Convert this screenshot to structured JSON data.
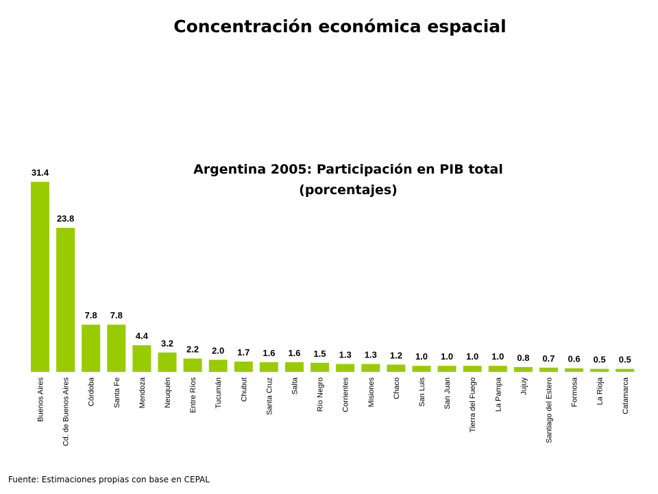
{
  "page_title": "Concentración económica espacial",
  "footer": "Fuente: Estimaciones propias con base en CEPAL",
  "chart_data": {
    "type": "bar",
    "title_line1": "Argentina 2005: Participación en PIB total",
    "title_line2": "(porcentajes)",
    "xlabel": "",
    "ylabel": "",
    "ylim": [
      0,
      31.4
    ],
    "grid": false,
    "bar_color": "#99cc00",
    "categories": [
      "Buenos Aires",
      "Cd. de Buenos Aires",
      "Córdoba",
      "Santa Fe",
      "Mendoza",
      "Neuquén",
      "Entre Ríos",
      "Tucumán",
      "Chubut",
      "Santa Cruz",
      "Salta",
      "Río Negro",
      "Corrientes",
      "Misiones",
      "Chaco",
      "San Luis",
      "San Juan",
      "Tierra del Fuego",
      "La Pampa",
      "Jujuy",
      "Santiago del Estero",
      "Formosa",
      "La Rioja",
      "Catamarca"
    ],
    "values": [
      31.4,
      23.8,
      7.8,
      7.8,
      4.4,
      3.2,
      2.2,
      2.0,
      1.7,
      1.6,
      1.6,
      1.5,
      1.3,
      1.3,
      1.2,
      1.0,
      1.0,
      1.0,
      1.0,
      0.8,
      0.7,
      0.6,
      0.5,
      0.5
    ],
    "value_labels": [
      "31.4",
      "23.8",
      "7.8",
      "7.8",
      "4.4",
      "3.2",
      "2.2",
      "2.0",
      "1.7",
      "1.6",
      "1.6",
      "1.5",
      "1.3",
      "1.3",
      "1.2",
      "1.0",
      "1.0",
      "1.0",
      "1.0",
      "0.8",
      "0.7",
      "0.6",
      "0.5",
      "0.5"
    ]
  }
}
